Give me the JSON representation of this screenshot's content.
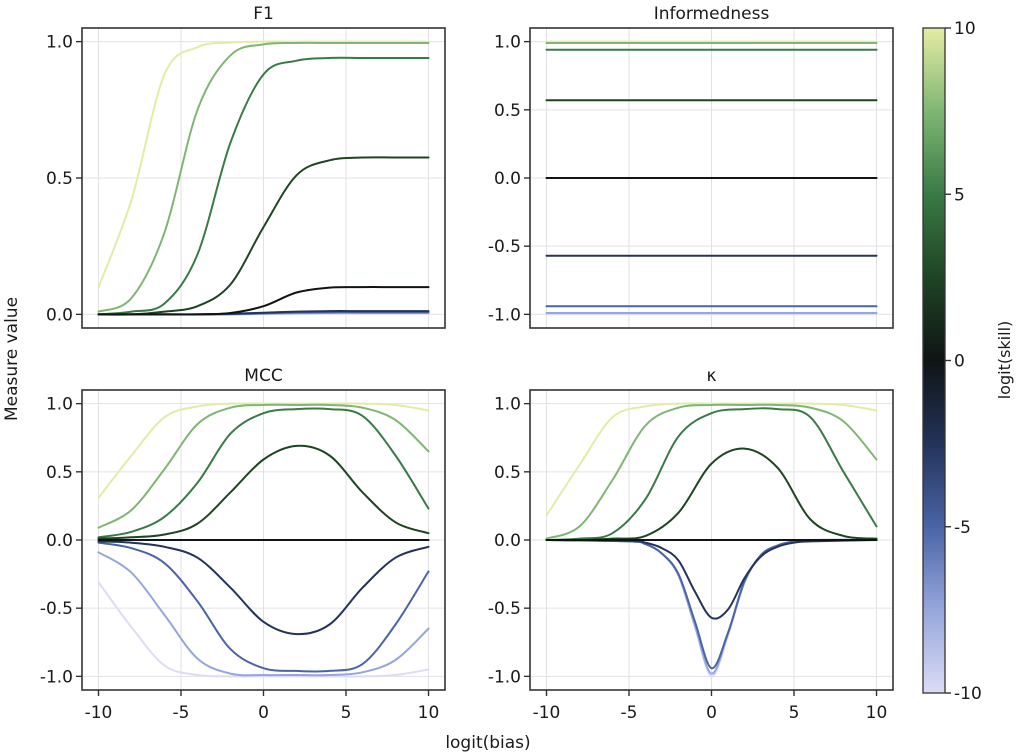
{
  "chart_data": {
    "type": "line",
    "xlabel": "logit(bias)",
    "ylabel": "Measure value",
    "colorbar": {
      "label": "logit(skill)",
      "range": [
        -10,
        10
      ],
      "ticks": [
        10,
        5,
        0,
        -5,
        -10
      ],
      "tick_labels": [
        "10",
        "5",
        "0",
        "-5",
        "-10"
      ],
      "colormap_stops": [
        {
          "value": -10,
          "color": "#dcdcf5"
        },
        {
          "value": -7.5,
          "color": "#96a6dc"
        },
        {
          "value": -5,
          "color": "#4a64a6"
        },
        {
          "value": -2.5,
          "color": "#23335a"
        },
        {
          "value": 0,
          "color": "#0f1414"
        },
        {
          "value": 2.5,
          "color": "#1f4424"
        },
        {
          "value": 5,
          "color": "#3a7a46"
        },
        {
          "value": 7.5,
          "color": "#7fb673"
        },
        {
          "value": 10,
          "color": "#e4eca4"
        }
      ]
    },
    "grid": true,
    "xlim": [
      -11,
      11
    ],
    "xticks": [
      -10,
      -5,
      0,
      5,
      10
    ],
    "xtick_labels": [
      "-10",
      "-5",
      "0",
      "5",
      "10"
    ],
    "panels": [
      {
        "title": "F1",
        "ylim": [
          -0.05,
          1.05
        ],
        "yticks": [
          0.0,
          0.5,
          1.0
        ],
        "ytick_labels": [
          "0.0",
          "0.5",
          "1.0"
        ],
        "show_xticks": false,
        "series": [
          {
            "skill": -10,
            "x": [
              -10,
              -8,
              -6,
              -4,
              -2,
              0,
              2,
              4,
              6,
              8,
              10
            ],
            "values": [
              0,
              0,
              0,
              0,
              0,
              0.001,
              0.002,
              0.003,
              0.003,
              0.003,
              0.003
            ]
          },
          {
            "skill": -7.5,
            "x": [
              -10,
              -8,
              -6,
              -4,
              -2,
              0,
              2,
              4,
              6,
              8,
              10
            ],
            "values": [
              0,
              0,
              0,
              0,
              0,
              0.002,
              0.004,
              0.005,
              0.005,
              0.005,
              0.005
            ]
          },
          {
            "skill": -5,
            "x": [
              -10,
              -8,
              -6,
              -4,
              -2,
              0,
              2,
              4,
              6,
              8,
              10
            ],
            "values": [
              0,
              0,
              0,
              0,
              0.001,
              0.004,
              0.007,
              0.008,
              0.008,
              0.008,
              0.008
            ]
          },
          {
            "skill": -2.5,
            "x": [
              -10,
              -8,
              -6,
              -4,
              -2,
              0,
              2,
              4,
              6,
              8,
              10
            ],
            "values": [
              0,
              0,
              0,
              0,
              0.002,
              0.006,
              0.01,
              0.012,
              0.012,
              0.012,
              0.012
            ]
          },
          {
            "skill": 0,
            "x": [
              -10,
              -8,
              -6,
              -4,
              -2,
              0,
              2,
              4,
              6,
              8,
              10
            ],
            "values": [
              0,
              0,
              0,
              0,
              0.005,
              0.03,
              0.08,
              0.098,
              0.1,
              0.1,
              0.1
            ]
          },
          {
            "skill": 2.5,
            "x": [
              -10,
              -8,
              -6,
              -4,
              -2,
              0,
              2,
              4,
              6,
              8,
              10
            ],
            "values": [
              0,
              0,
              0.01,
              0.03,
              0.11,
              0.32,
              0.51,
              0.565,
              0.575,
              0.575,
              0.575
            ]
          },
          {
            "skill": 5,
            "x": [
              -10,
              -8,
              -6,
              -4,
              -2,
              0,
              2,
              4,
              6,
              8,
              10
            ],
            "values": [
              0,
              0.01,
              0.04,
              0.22,
              0.63,
              0.88,
              0.93,
              0.94,
              0.94,
              0.94,
              0.94
            ]
          },
          {
            "skill": 7.5,
            "x": [
              -10,
              -8,
              -6,
              -4,
              -2,
              0,
              2,
              4,
              6,
              8,
              10
            ],
            "values": [
              0.01,
              0.06,
              0.3,
              0.75,
              0.95,
              0.99,
              0.995,
              0.995,
              0.995,
              0.995,
              0.995
            ]
          },
          {
            "skill": 10,
            "x": [
              -10,
              -8,
              -6,
              -4,
              -2,
              0,
              2,
              4,
              6,
              8,
              10
            ],
            "values": [
              0.1,
              0.42,
              0.88,
              0.98,
              0.997,
              1.0,
              1.0,
              1.0,
              1.0,
              1.0,
              1.0
            ]
          }
        ]
      },
      {
        "title": "Informedness",
        "ylim": [
          -1.1,
          1.1
        ],
        "yticks": [
          -1.0,
          -0.5,
          0.0,
          0.5,
          1.0
        ],
        "ytick_labels": [
          "-1.0",
          "-0.5",
          "0.0",
          "0.5",
          "1.0"
        ],
        "show_xticks": false,
        "series": [
          {
            "skill": -10,
            "x": [
              -10,
              10
            ],
            "values": [
              -1.0,
              -1.0
            ]
          },
          {
            "skill": -7.5,
            "x": [
              -10,
              10
            ],
            "values": [
              -0.99,
              -0.99
            ]
          },
          {
            "skill": -5,
            "x": [
              -10,
              10
            ],
            "values": [
              -0.94,
              -0.94
            ]
          },
          {
            "skill": -2.5,
            "x": [
              -10,
              10
            ],
            "values": [
              -0.57,
              -0.57
            ]
          },
          {
            "skill": 0,
            "x": [
              -10,
              10
            ],
            "values": [
              0,
              0
            ]
          },
          {
            "skill": 2.5,
            "x": [
              -10,
              10
            ],
            "values": [
              0.57,
              0.57
            ]
          },
          {
            "skill": 5,
            "x": [
              -10,
              10
            ],
            "values": [
              0.94,
              0.94
            ]
          },
          {
            "skill": 7.5,
            "x": [
              -10,
              10
            ],
            "values": [
              0.99,
              0.99
            ]
          },
          {
            "skill": 10,
            "x": [
              -10,
              10
            ],
            "values": [
              1.0,
              1.0
            ]
          }
        ]
      },
      {
        "title": "MCC",
        "ylim": [
          -1.1,
          1.1
        ],
        "yticks": [
          -1.0,
          -0.5,
          0.0,
          0.5,
          1.0
        ],
        "ytick_labels": [
          "-1.0",
          "-0.5",
          "0.0",
          "0.5",
          "1.0"
        ],
        "show_xticks": true,
        "series": [
          {
            "skill": -10,
            "x": [
              -10,
              -8,
              -6,
              -4,
              -2,
              0,
              2,
              4,
              6,
              8,
              10
            ],
            "values": [
              -0.31,
              -0.64,
              -0.92,
              -0.99,
              -1.0,
              -1.0,
              -1.0,
              -1.0,
              -1.0,
              -0.99,
              -0.95
            ]
          },
          {
            "skill": -7.5,
            "x": [
              -10,
              -8,
              -6,
              -4,
              -2,
              0,
              2,
              4,
              6,
              8,
              10
            ],
            "values": [
              -0.09,
              -0.24,
              -0.55,
              -0.87,
              -0.98,
              -0.99,
              -0.99,
              -0.99,
              -0.97,
              -0.88,
              -0.65
            ]
          },
          {
            "skill": -5,
            "x": [
              -10,
              -8,
              -6,
              -4,
              -2,
              0,
              2,
              4,
              6,
              8,
              10
            ],
            "values": [
              -0.02,
              -0.06,
              -0.17,
              -0.45,
              -0.8,
              -0.94,
              -0.96,
              -0.96,
              -0.91,
              -0.62,
              -0.23
            ]
          },
          {
            "skill": -2.5,
            "x": [
              -10,
              -8,
              -6,
              -4,
              -2,
              0,
              2,
              4,
              6,
              8,
              10
            ],
            "values": [
              -0.01,
              -0.02,
              -0.05,
              -0.13,
              -0.35,
              -0.6,
              -0.69,
              -0.62,
              -0.35,
              -0.13,
              -0.05
            ]
          },
          {
            "skill": 0,
            "x": [
              -10,
              10
            ],
            "values": [
              0,
              0
            ]
          },
          {
            "skill": 2.5,
            "x": [
              -10,
              -8,
              -6,
              -4,
              -2,
              0,
              2,
              4,
              6,
              8,
              10
            ],
            "values": [
              0.01,
              0.02,
              0.04,
              0.12,
              0.35,
              0.59,
              0.69,
              0.62,
              0.35,
              0.13,
              0.05
            ]
          },
          {
            "skill": 5,
            "x": [
              -10,
              -8,
              -6,
              -4,
              -2,
              0,
              2,
              4,
              6,
              8,
              10
            ],
            "values": [
              0.02,
              0.06,
              0.17,
              0.42,
              0.78,
              0.93,
              0.96,
              0.96,
              0.91,
              0.62,
              0.23
            ]
          },
          {
            "skill": 7.5,
            "x": [
              -10,
              -8,
              -6,
              -4,
              -2,
              0,
              2,
              4,
              6,
              8,
              10
            ],
            "values": [
              0.09,
              0.22,
              0.52,
              0.85,
              0.97,
              0.99,
              0.99,
              0.99,
              0.97,
              0.88,
              0.65
            ]
          },
          {
            "skill": 10,
            "x": [
              -10,
              -8,
              -6,
              -4,
              -2,
              0,
              2,
              4,
              6,
              8,
              10
            ],
            "values": [
              0.31,
              0.62,
              0.9,
              0.98,
              1.0,
              1.0,
              1.0,
              1.0,
              1.0,
              0.99,
              0.95
            ]
          }
        ]
      },
      {
        "title": "κ",
        "ylim": [
          -1.1,
          1.1
        ],
        "yticks": [
          -1.0,
          -0.5,
          0.0,
          0.5,
          1.0
        ],
        "ytick_labels": [
          "-1.0",
          "-0.5",
          "0.0",
          "0.5",
          "1.0"
        ],
        "show_xticks": true,
        "series": [
          {
            "skill": -10,
            "x": [
              -10,
              -5,
              -4,
              -3,
              -2,
              -1,
              0,
              1,
              2,
              3,
              4,
              5,
              6,
              10
            ],
            "values": [
              0,
              -0.01,
              -0.03,
              -0.1,
              -0.26,
              -0.64,
              -1.0,
              -0.7,
              -0.31,
              -0.11,
              -0.04,
              -0.01,
              0,
              0
            ]
          },
          {
            "skill": -7.5,
            "x": [
              -10,
              -5,
              -4,
              -3,
              -2,
              -1,
              0,
              1,
              2,
              3,
              4,
              5,
              6,
              10
            ],
            "values": [
              0,
              -0.01,
              -0.03,
              -0.1,
              -0.26,
              -0.63,
              -0.98,
              -0.69,
              -0.31,
              -0.11,
              -0.04,
              -0.01,
              0,
              0
            ]
          },
          {
            "skill": -5,
            "x": [
              -10,
              -5,
              -4,
              -3,
              -2,
              -1,
              0,
              1,
              2,
              3,
              4,
              5,
              6,
              10
            ],
            "values": [
              0,
              -0.01,
              -0.03,
              -0.1,
              -0.25,
              -0.6,
              -0.94,
              -0.68,
              -0.3,
              -0.11,
              -0.04,
              -0.01,
              0,
              0
            ]
          },
          {
            "skill": -2.5,
            "x": [
              -10,
              -5,
              -4,
              -3,
              -2,
              -1,
              0,
              1,
              2,
              3,
              4,
              5,
              6,
              10
            ],
            "values": [
              0,
              -0.005,
              -0.02,
              -0.06,
              -0.15,
              -0.38,
              -0.57,
              -0.51,
              -0.28,
              -0.12,
              -0.05,
              -0.02,
              -0.01,
              0
            ]
          },
          {
            "skill": 0,
            "x": [
              -10,
              10
            ],
            "values": [
              0,
              0
            ]
          },
          {
            "skill": 2.5,
            "x": [
              -10,
              -8,
              -6,
              -4,
              -2,
              0,
              2,
              4,
              6,
              8,
              10
            ],
            "values": [
              0,
              0,
              0.01,
              0.03,
              0.2,
              0.56,
              0.67,
              0.53,
              0.15,
              0.03,
              0.01
            ]
          },
          {
            "skill": 5,
            "x": [
              -10,
              -8,
              -6,
              -4,
              -2,
              0,
              2,
              4,
              6,
              8,
              10
            ],
            "values": [
              0,
              0.01,
              0.05,
              0.3,
              0.76,
              0.93,
              0.96,
              0.96,
              0.9,
              0.5,
              0.1
            ]
          },
          {
            "skill": 7.5,
            "x": [
              -10,
              -8,
              -6,
              -4,
              -2,
              0,
              2,
              4,
              6,
              8,
              10
            ],
            "values": [
              0.01,
              0.1,
              0.44,
              0.84,
              0.97,
              0.99,
              0.99,
              0.99,
              0.97,
              0.87,
              0.59
            ]
          },
          {
            "skill": 10,
            "x": [
              -10,
              -8,
              -6,
              -4,
              -2,
              0,
              2,
              4,
              6,
              8,
              10
            ],
            "values": [
              0.18,
              0.55,
              0.9,
              0.98,
              1.0,
              1.0,
              1.0,
              1.0,
              1.0,
              0.99,
              0.95
            ]
          }
        ]
      }
    ]
  }
}
